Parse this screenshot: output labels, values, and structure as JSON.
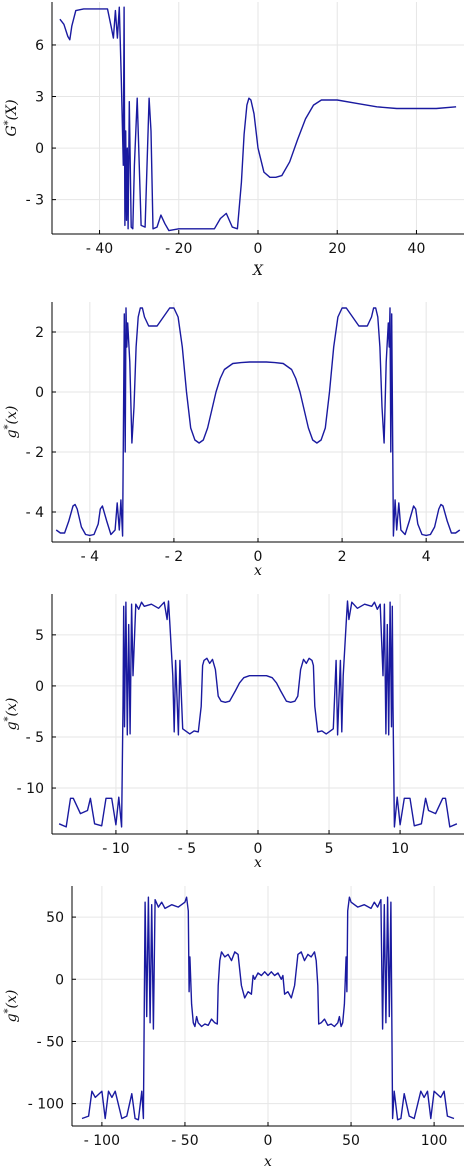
{
  "colors": {
    "series": "#1a1aa0",
    "grid": "#e6e6e6",
    "axis": "#000000"
  },
  "chart_data": [
    {
      "type": "line",
      "xlabel": "X",
      "ylabel": "G*(X)",
      "xlim": [
        -52,
        52
      ],
      "ylim": [
        -5,
        8.5
      ],
      "xticks": [
        -40,
        -20,
        0,
        20,
        40
      ],
      "xtick_labels": [
        "- 40",
        "- 20",
        "0",
        "20",
        "40"
      ],
      "yticks": [
        -3,
        0,
        3,
        6
      ],
      "ytick_labels": [
        "- 3",
        "0",
        "3",
        "6"
      ],
      "grid": true,
      "series": [
        {
          "x": [
            -50,
            -49,
            -48,
            -47.5,
            -47,
            -46,
            -44,
            -42,
            -40,
            -38,
            -37,
            -36.5,
            -36,
            -35.5,
            -35,
            -34.5,
            -34,
            -33.8,
            -33.6,
            -33.4,
            -33.2,
            -33,
            -32.8,
            -32.5,
            -32,
            -31.6,
            -31.2,
            -30.5,
            -29.5,
            -28.5,
            -27.5,
            -27,
            -26.5,
            -25.5,
            -24.5,
            -23.5,
            -22.5,
            -20,
            -15,
            -11,
            -9.5,
            -8,
            -6.5,
            -5.2,
            -4.2,
            -3.5,
            -2.8,
            -2.3,
            -1.8,
            -1,
            0,
            1.5,
            3,
            4.5,
            6,
            8,
            10,
            12,
            14,
            16,
            20,
            25,
            30,
            35,
            40,
            45,
            50
          ],
          "y": [
            7.5,
            7.2,
            6.5,
            6.3,
            7.1,
            8.0,
            8.1,
            8.1,
            8.1,
            8.1,
            7.0,
            6.4,
            8.0,
            6.4,
            8.2,
            4.0,
            -1.0,
            8.2,
            -4.5,
            1.0,
            -4.2,
            0.0,
            -4.7,
            2.7,
            -4.6,
            -4.7,
            -1.0,
            2.9,
            -4.5,
            -4.6,
            2.9,
            1.0,
            -4.7,
            -4.6,
            -3.9,
            -4.4,
            -4.8,
            -4.7,
            -4.7,
            -4.7,
            -4.1,
            -3.8,
            -4.6,
            -4.7,
            -2.0,
            0.8,
            2.5,
            2.9,
            2.8,
            2.0,
            0.0,
            -1.4,
            -1.7,
            -1.7,
            -1.6,
            -0.8,
            0.5,
            1.7,
            2.5,
            2.8,
            2.8,
            2.6,
            2.4,
            2.3,
            2.3,
            2.3,
            2.4
          ]
        }
      ]
    },
    {
      "type": "line",
      "xlabel": "x",
      "ylabel": "g*(x)",
      "xlim": [
        -4.9,
        4.9
      ],
      "ylim": [
        -5.0,
        3.0
      ],
      "xticks": [
        -4,
        -2,
        0,
        2,
        4
      ],
      "xtick_labels": [
        "- 4",
        "- 2",
        "0",
        "2",
        "4"
      ],
      "yticks": [
        -4,
        -2,
        0,
        2
      ],
      "ytick_labels": [
        "- 4",
        "- 2",
        "0",
        "2"
      ],
      "grid": true,
      "series": [
        {
          "x": [
            -4.8,
            -4.7,
            -4.6,
            -4.5,
            -4.4,
            -4.35,
            -4.3,
            -4.2,
            -4.1,
            -4.0,
            -3.9,
            -3.8,
            -3.75,
            -3.7,
            -3.6,
            -3.5,
            -3.4,
            -3.35,
            -3.3,
            -3.26,
            -3.22,
            -3.18,
            -3.16,
            -3.14,
            -3.12,
            -3.1,
            -3.05,
            -3.0,
            -2.95,
            -2.9,
            -2.85,
            -2.8,
            -2.75,
            -2.7,
            -2.6,
            -2.4,
            -2.2,
            -2.1,
            -2.0,
            -1.9,
            -1.8,
            -1.7,
            -1.6,
            -1.5,
            -1.4,
            -1.3,
            -1.2,
            -1.1,
            -1.0,
            -0.9,
            -0.8,
            -0.6,
            -0.4,
            -0.2,
            0.0,
            0.2,
            0.4,
            0.6,
            0.8,
            0.9,
            1.0,
            1.1,
            1.2,
            1.3,
            1.4,
            1.5,
            1.6,
            1.7,
            1.8,
            1.9,
            2.0,
            2.1,
            2.2,
            2.4,
            2.6,
            2.7,
            2.75,
            2.8,
            2.85,
            2.9,
            2.95,
            3.0,
            3.05,
            3.1,
            3.12,
            3.14,
            3.16,
            3.18,
            3.22,
            3.26,
            3.3,
            3.35,
            3.4,
            3.5,
            3.6,
            3.7,
            3.75,
            3.8,
            3.9,
            4.0,
            4.1,
            4.2,
            4.3,
            4.35,
            4.4,
            4.5,
            4.6,
            4.7,
            4.8
          ],
          "y": [
            -4.6,
            -4.7,
            -4.7,
            -4.3,
            -3.8,
            -3.75,
            -3.9,
            -4.5,
            -4.75,
            -4.78,
            -4.75,
            -4.4,
            -3.9,
            -3.8,
            -4.3,
            -4.75,
            -4.6,
            -3.7,
            -4.6,
            -3.6,
            -4.8,
            2.6,
            -2.0,
            2.8,
            1.5,
            2.3,
            1.0,
            -1.7,
            -0.5,
            1.5,
            2.5,
            2.8,
            2.8,
            2.5,
            2.2,
            2.2,
            2.6,
            2.8,
            2.8,
            2.5,
            1.5,
            0.0,
            -1.2,
            -1.6,
            -1.7,
            -1.6,
            -1.2,
            -0.6,
            0.0,
            0.45,
            0.75,
            0.95,
            0.98,
            1.0,
            1.0,
            1.0,
            0.98,
            0.95,
            0.75,
            0.45,
            0.0,
            -0.6,
            -1.2,
            -1.6,
            -1.7,
            -1.6,
            -1.2,
            0.0,
            1.5,
            2.5,
            2.8,
            2.8,
            2.6,
            2.2,
            2.2,
            2.5,
            2.8,
            2.8,
            2.5,
            1.5,
            -0.5,
            -1.7,
            1.0,
            2.3,
            1.5,
            2.8,
            -2.0,
            2.6,
            -4.8,
            -3.6,
            -4.6,
            -3.7,
            -4.6,
            -4.75,
            -4.3,
            -3.8,
            -3.9,
            -4.4,
            -4.75,
            -4.78,
            -4.75,
            -4.5,
            -3.9,
            -3.75,
            -3.8,
            -4.3,
            -4.7,
            -4.7,
            -4.6
          ]
        }
      ]
    },
    {
      "type": "line",
      "xlabel": "x",
      "ylabel": "g*(x)",
      "xlim": [
        -14.5,
        14.5
      ],
      "ylim": [
        -14.5,
        9.0
      ],
      "xticks": [
        -10,
        -5,
        0,
        5,
        10
      ],
      "xtick_labels": [
        "- 10",
        "- 5",
        "0",
        "5",
        "10"
      ],
      "yticks": [
        -10,
        -5,
        0,
        5
      ],
      "ytick_labels": [
        "- 10",
        "- 5",
        "0",
        "5"
      ],
      "grid": true,
      "series": [
        {
          "x": [
            -14,
            -13.5,
            -13.2,
            -13.0,
            -12.5,
            -12.0,
            -11.8,
            -11.5,
            -11.0,
            -10.7,
            -10.3,
            -10.0,
            -9.8,
            -9.6,
            -9.5,
            -9.45,
            -9.4,
            -9.3,
            -9.2,
            -9.1,
            -9.0,
            -8.9,
            -8.8,
            -8.6,
            -8.4,
            -8.2,
            -8.0,
            -7.5,
            -7.0,
            -6.6,
            -6.4,
            -6.3,
            -6.2,
            -6.0,
            -5.9,
            -5.8,
            -5.6,
            -5.5,
            -5.3,
            -5.0,
            -4.8,
            -4.5,
            -4.2,
            -4.0,
            -3.9,
            -3.8,
            -3.6,
            -3.4,
            -3.2,
            -3.0,
            -2.8,
            -2.6,
            -2.3,
            -2.0,
            -1.6,
            -1.3,
            -1.0,
            -0.6,
            0.0,
            0.6,
            1.0,
            1.3,
            1.6,
            2.0,
            2.3,
            2.6,
            2.8,
            3.0,
            3.2,
            3.4,
            3.6,
            3.8,
            3.9,
            4.0,
            4.2,
            4.5,
            4.8,
            5.0,
            5.3,
            5.5,
            5.6,
            5.8,
            5.9,
            6.0,
            6.2,
            6.3,
            6.4,
            6.6,
            7.0,
            7.5,
            8.0,
            8.2,
            8.4,
            8.6,
            8.8,
            8.9,
            9.0,
            9.1,
            9.2,
            9.3,
            9.4,
            9.45,
            9.5,
            9.6,
            9.8,
            10.0,
            10.3,
            10.7,
            11.0,
            11.5,
            11.8,
            12.0,
            12.5,
            13.0,
            13.2,
            13.5,
            14
          ],
          "y": [
            -13.5,
            -13.8,
            -11.0,
            -11.0,
            -12.5,
            -12.2,
            -11.0,
            -13.5,
            -13.7,
            -11.0,
            -11.0,
            -13.6,
            -10.9,
            -13.8,
            -2.0,
            7.8,
            -4.0,
            8.2,
            -4.8,
            6.0,
            -4.7,
            8.0,
            1.0,
            8.0,
            7.5,
            8.2,
            7.8,
            8.0,
            7.6,
            8.2,
            6.5,
            8.3,
            6.0,
            1.0,
            -4.5,
            2.5,
            -4.8,
            2.5,
            -4.2,
            -4.5,
            -4.7,
            -4.4,
            -4.5,
            -2.0,
            2.0,
            2.5,
            2.7,
            2.2,
            2.6,
            1.6,
            -1.0,
            -1.5,
            -1.6,
            -1.5,
            -0.5,
            0.3,
            0.8,
            1.0,
            1.0,
            1.0,
            0.8,
            0.3,
            -0.5,
            -1.5,
            -1.6,
            -1.5,
            -1.0,
            1.6,
            2.6,
            2.2,
            2.7,
            2.5,
            2.0,
            -2.0,
            -4.5,
            -4.4,
            -4.7,
            -4.5,
            -4.2,
            2.5,
            -4.8,
            2.5,
            -4.5,
            1.0,
            6.0,
            8.3,
            6.5,
            8.2,
            7.6,
            8.0,
            7.8,
            8.2,
            7.5,
            8.0,
            1.0,
            8.0,
            -4.7,
            6.0,
            -4.8,
            8.2,
            -4.0,
            7.8,
            -2.0,
            -13.8,
            -10.9,
            -13.6,
            -11.0,
            -11.0,
            -13.7,
            -13.5,
            -11.0,
            -12.2,
            -12.5,
            -11.0,
            -11.0,
            -13.8,
            -13.5
          ]
        }
      ]
    },
    {
      "type": "line",
      "xlabel": "x",
      "ylabel": "g*(x)",
      "xlim": [
        -118,
        118
      ],
      "ylim": [
        -118,
        75
      ],
      "xticks": [
        -100,
        -50,
        0,
        50,
        100
      ],
      "xtick_labels": [
        "- 100",
        "- 50",
        "0",
        "50",
        "100"
      ],
      "yticks": [
        -100,
        -50,
        0,
        50
      ],
      "ytick_labels": [
        "- 100",
        "- 50",
        "0",
        "50"
      ],
      "grid": true,
      "series": [
        {
          "x": [
            -112,
            -108,
            -106,
            -104,
            -100,
            -98,
            -96,
            -94,
            -92,
            -88,
            -85,
            -82,
            -80,
            -78,
            -76,
            -75,
            -74.5,
            -74,
            -73,
            -72,
            -71,
            -70,
            -69,
            -68,
            -66,
            -64,
            -62,
            -58,
            -54,
            -50,
            -49,
            -48,
            -47.5,
            -47,
            -46,
            -45,
            -44,
            -43,
            -42,
            -40,
            -38,
            -36,
            -34,
            -32,
            -30.5,
            -30,
            -29,
            -28,
            -26,
            -24,
            -22,
            -20,
            -18,
            -16,
            -14,
            -12,
            -10,
            -9,
            -8,
            -6,
            -4,
            -2,
            0,
            2,
            4,
            6,
            8,
            9,
            10,
            12,
            14,
            16,
            18,
            20,
            22,
            24,
            26,
            28,
            29,
            30,
            30.5,
            32,
            34,
            36,
            38,
            40,
            42,
            43,
            44,
            45,
            46,
            47,
            47.5,
            48,
            49,
            50,
            54,
            58,
            62,
            64,
            66,
            68,
            69,
            70,
            71,
            72,
            73,
            74,
            74.5,
            75,
            76,
            78,
            80,
            82,
            85,
            88,
            92,
            94,
            96,
            98,
            100,
            104,
            106,
            108,
            112
          ],
          "y": [
            -112,
            -110,
            -90,
            -95,
            -90,
            -112,
            -90,
            -95,
            -90,
            -112,
            -110,
            -92,
            -112,
            -113,
            -90,
            -112,
            -20,
            62,
            -30,
            66,
            -35,
            60,
            -40,
            64,
            58,
            62,
            57,
            60,
            58,
            62,
            66,
            55,
            -10,
            18,
            -20,
            -35,
            -38,
            -30,
            -35,
            -38,
            -36,
            -37,
            -32,
            -35,
            -36,
            -5,
            15,
            22,
            18,
            20,
            15,
            22,
            20,
            -5,
            -15,
            -10,
            -12,
            3,
            0,
            5,
            3,
            6,
            3,
            6,
            3,
            5,
            0,
            3,
            -12,
            -10,
            -15,
            -5,
            20,
            22,
            15,
            20,
            18,
            22,
            15,
            -5,
            -36,
            -35,
            -32,
            -37,
            -36,
            -38,
            -35,
            -30,
            -38,
            -35,
            -20,
            18,
            -10,
            55,
            66,
            62,
            58,
            60,
            57,
            62,
            58,
            64,
            -40,
            60,
            -35,
            66,
            -30,
            62,
            -20,
            -112,
            -90,
            -113,
            -112,
            -92,
            -110,
            -112,
            -90,
            -95,
            -90,
            -112,
            -90,
            -95,
            -90,
            -110,
            -112
          ]
        }
      ]
    }
  ]
}
